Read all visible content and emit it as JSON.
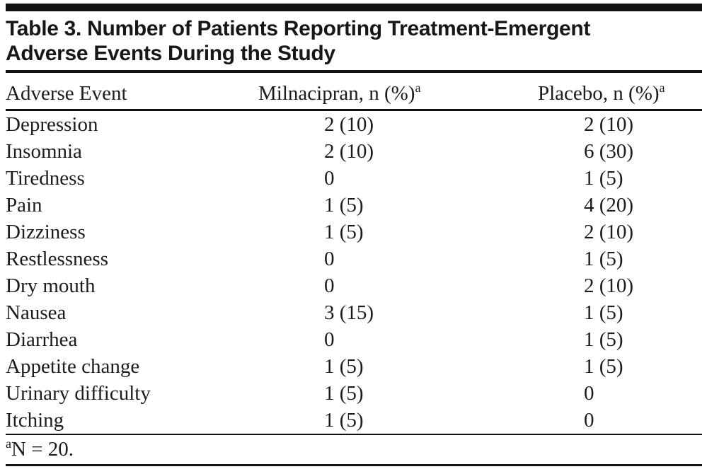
{
  "table": {
    "title_lines": [
      "Table 3. Number of Patients Reporting Treatment-Emergent",
      "Adverse Events During the Study"
    ],
    "columns": [
      {
        "label": "Adverse Event",
        "sup": ""
      },
      {
        "label": "Milnacipran, n (%)",
        "sup": "a"
      },
      {
        "label": "Placebo, n (%)",
        "sup": "a"
      }
    ],
    "rows": [
      {
        "event": "Depression",
        "milnacipran": "2 (10)",
        "placebo": "2 (10)"
      },
      {
        "event": "Insomnia",
        "milnacipran": "2 (10)",
        "placebo": "6 (30)"
      },
      {
        "event": "Tiredness",
        "milnacipran": "0",
        "placebo": "1 (5)"
      },
      {
        "event": "Pain",
        "milnacipran": "1 (5)",
        "placebo": "4 (20)"
      },
      {
        "event": "Dizziness",
        "milnacipran": "1 (5)",
        "placebo": "2 (10)"
      },
      {
        "event": "Restlessness",
        "milnacipran": "0",
        "placebo": "1 (5)"
      },
      {
        "event": "Dry mouth",
        "milnacipran": "0",
        "placebo": "2 (10)"
      },
      {
        "event": "Nausea",
        "milnacipran": "3 (15)",
        "placebo": "1 (5)"
      },
      {
        "event": "Diarrhea",
        "milnacipran": "0",
        "placebo": "1 (5)"
      },
      {
        "event": "Appetite change",
        "milnacipran": "1 (5)",
        "placebo": "1 (5)"
      },
      {
        "event": "Urinary difficulty",
        "milnacipran": "1 (5)",
        "placebo": "0"
      },
      {
        "event": "Itching",
        "milnacipran": "1 (5)",
        "placebo": "0"
      }
    ],
    "footnote": {
      "marker": "a",
      "text": "N = 20."
    },
    "colors": {
      "ink": "#1c1c1c",
      "rule": "#121212",
      "background": "#ffffff"
    }
  }
}
